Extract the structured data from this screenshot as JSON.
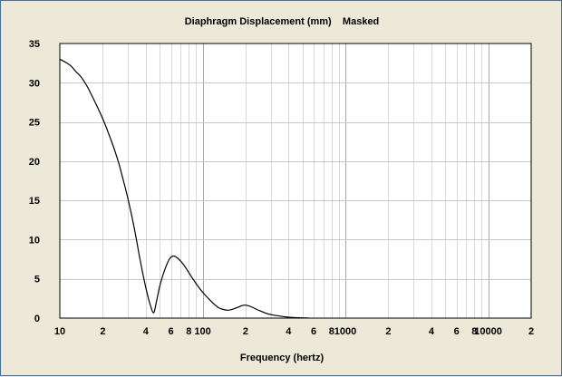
{
  "chart_data": {
    "type": "line",
    "title": "Diaphragm Displacement (mm)    Masked",
    "xlabel": "Frequency (hertz)",
    "ylabel": "",
    "x_scale": "log",
    "xlim": [
      10,
      20000
    ],
    "ylim": [
      0,
      35
    ],
    "grid": true,
    "legend": "none",
    "x_tick_labels": [
      {
        "value": 10,
        "label": "10"
      },
      {
        "value": 20,
        "label": "2"
      },
      {
        "value": 40,
        "label": "4"
      },
      {
        "value": 60,
        "label": "6"
      },
      {
        "value": 80,
        "label": "8"
      },
      {
        "value": 100,
        "label": "100"
      },
      {
        "value": 200,
        "label": "2"
      },
      {
        "value": 400,
        "label": "4"
      },
      {
        "value": 600,
        "label": "6"
      },
      {
        "value": 800,
        "label": "8"
      },
      {
        "value": 1000,
        "label": "1000"
      },
      {
        "value": 2000,
        "label": "2"
      },
      {
        "value": 4000,
        "label": "4"
      },
      {
        "value": 6000,
        "label": "6"
      },
      {
        "value": 8000,
        "label": "8"
      },
      {
        "value": 10000,
        "label": "10000"
      },
      {
        "value": 20000,
        "label": "2"
      }
    ],
    "y_tick_labels": [
      {
        "value": 0,
        "label": "0"
      },
      {
        "value": 5,
        "label": "5"
      },
      {
        "value": 10,
        "label": "10"
      },
      {
        "value": 15,
        "label": "15"
      },
      {
        "value": 20,
        "label": "20"
      },
      {
        "value": 25,
        "label": "25"
      },
      {
        "value": 30,
        "label": "30"
      },
      {
        "value": 35,
        "label": "35"
      }
    ],
    "series": [
      {
        "color": "#000000",
        "points": [
          [
            10,
            33.0
          ],
          [
            11,
            32.6
          ],
          [
            12,
            32.1
          ],
          [
            13,
            31.4
          ],
          [
            14,
            30.8
          ],
          [
            15,
            30.0
          ],
          [
            16,
            29.1
          ],
          [
            18,
            27.2
          ],
          [
            20,
            25.4
          ],
          [
            22,
            23.5
          ],
          [
            24,
            21.6
          ],
          [
            26,
            19.6
          ],
          [
            28,
            17.4
          ],
          [
            30,
            15.2
          ],
          [
            32,
            12.9
          ],
          [
            34,
            10.5
          ],
          [
            36,
            8.0
          ],
          [
            38,
            5.8
          ],
          [
            40,
            3.9
          ],
          [
            42,
            2.3
          ],
          [
            44,
            1.1
          ],
          [
            45,
            0.7
          ],
          [
            46,
            0.9
          ],
          [
            48,
            2.5
          ],
          [
            50,
            4.0
          ],
          [
            53,
            5.6
          ],
          [
            56,
            6.8
          ],
          [
            59,
            7.6
          ],
          [
            62,
            7.9
          ],
          [
            65,
            7.8
          ],
          [
            70,
            7.3
          ],
          [
            75,
            6.6
          ],
          [
            80,
            5.8
          ],
          [
            90,
            4.4
          ],
          [
            100,
            3.3
          ],
          [
            110,
            2.5
          ],
          [
            120,
            1.8
          ],
          [
            130,
            1.3
          ],
          [
            140,
            1.1
          ],
          [
            150,
            1.0
          ],
          [
            160,
            1.1
          ],
          [
            175,
            1.35
          ],
          [
            190,
            1.6
          ],
          [
            200,
            1.65
          ],
          [
            215,
            1.5
          ],
          [
            240,
            1.1
          ],
          [
            270,
            0.7
          ],
          [
            300,
            0.45
          ],
          [
            350,
            0.25
          ],
          [
            400,
            0.12
          ],
          [
            450,
            0.06
          ],
          [
            500,
            0.03
          ],
          [
            550,
            0.01
          ]
        ]
      }
    ]
  }
}
